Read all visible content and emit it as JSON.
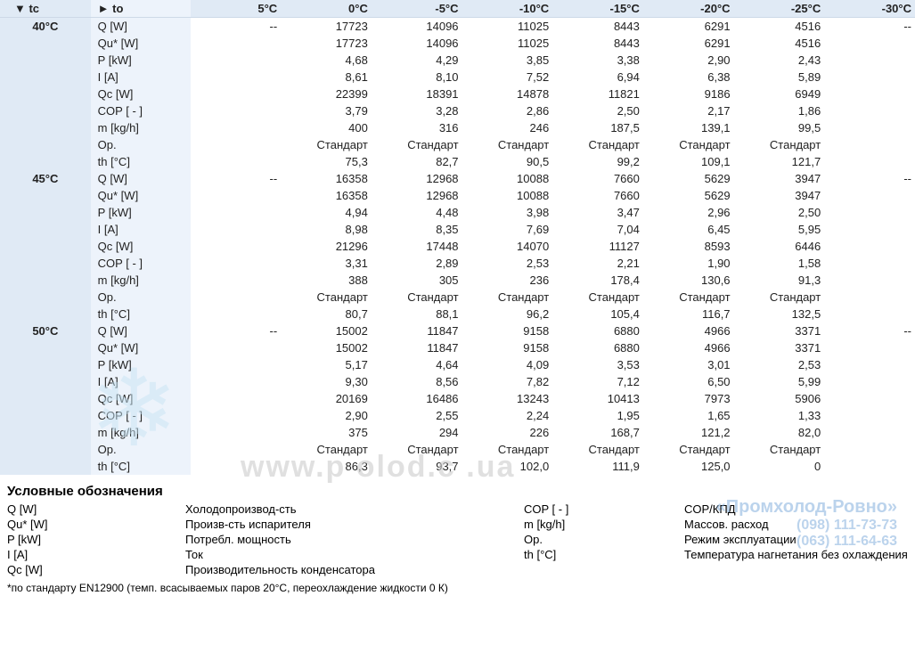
{
  "header": {
    "tc_label": "▼ tc",
    "to_label": "► to",
    "temps": [
      "5°C",
      "0°C",
      "-5°C",
      "-10°C",
      "-15°C",
      "-20°C",
      "-25°C",
      "-30°C"
    ]
  },
  "params": [
    "Q [W]",
    "Qu* [W]",
    "P [kW]",
    "I [A]",
    "Qc [W]",
    "COP [ - ]",
    "m [kg/h]",
    "Op.",
    "th [°C]"
  ],
  "blocks": [
    {
      "tc": "40°C",
      "rows": [
        [
          "--",
          "17723",
          "14096",
          "11025",
          "8443",
          "6291",
          "4516",
          "--"
        ],
        [
          "",
          "17723",
          "14096",
          "11025",
          "8443",
          "6291",
          "4516",
          ""
        ],
        [
          "",
          "4,68",
          "4,29",
          "3,85",
          "3,38",
          "2,90",
          "2,43",
          ""
        ],
        [
          "",
          "8,61",
          "8,10",
          "7,52",
          "6,94",
          "6,38",
          "5,89",
          ""
        ],
        [
          "",
          "22399",
          "18391",
          "14878",
          "11821",
          "9186",
          "6949",
          ""
        ],
        [
          "",
          "3,79",
          "3,28",
          "2,86",
          "2,50",
          "2,17",
          "1,86",
          ""
        ],
        [
          "",
          "400",
          "316",
          "246",
          "187,5",
          "139,1",
          "99,5",
          ""
        ],
        [
          "",
          "Стандарт",
          "Стандарт",
          "Стандарт",
          "Стандарт",
          "Стандарт",
          "Стандарт",
          ""
        ],
        [
          "",
          "75,3",
          "82,7",
          "90,5",
          "99,2",
          "109,1",
          "121,7",
          ""
        ]
      ]
    },
    {
      "tc": "45°C",
      "rows": [
        [
          "--",
          "16358",
          "12968",
          "10088",
          "7660",
          "5629",
          "3947",
          "--"
        ],
        [
          "",
          "16358",
          "12968",
          "10088",
          "7660",
          "5629",
          "3947",
          ""
        ],
        [
          "",
          "4,94",
          "4,48",
          "3,98",
          "3,47",
          "2,96",
          "2,50",
          ""
        ],
        [
          "",
          "8,98",
          "8,35",
          "7,69",
          "7,04",
          "6,45",
          "5,95",
          ""
        ],
        [
          "",
          "21296",
          "17448",
          "14070",
          "11127",
          "8593",
          "6446",
          ""
        ],
        [
          "",
          "3,31",
          "2,89",
          "2,53",
          "2,21",
          "1,90",
          "1,58",
          ""
        ],
        [
          "",
          "388",
          "305",
          "236",
          "178,4",
          "130,6",
          "91,3",
          ""
        ],
        [
          "",
          "Стандарт",
          "Стандарт",
          "Стандарт",
          "Стандарт",
          "Стандарт",
          "Стандарт",
          ""
        ],
        [
          "",
          "80,7",
          "88,1",
          "96,2",
          "105,4",
          "116,7",
          "132,5",
          ""
        ]
      ]
    },
    {
      "tc": "50°C",
      "rows": [
        [
          "--",
          "15002",
          "11847",
          "9158",
          "6880",
          "4966",
          "3371",
          "--"
        ],
        [
          "",
          "15002",
          "11847",
          "9158",
          "6880",
          "4966",
          "3371",
          ""
        ],
        [
          "",
          "5,17",
          "4,64",
          "4,09",
          "3,53",
          "3,01",
          "2,53",
          ""
        ],
        [
          "",
          "9,30",
          "8,56",
          "7,82",
          "7,12",
          "6,50",
          "5,99",
          ""
        ],
        [
          "",
          "20169",
          "16486",
          "13243",
          "10413",
          "7973",
          "5906",
          ""
        ],
        [
          "",
          "2,90",
          "2,55",
          "2,24",
          "1,95",
          "1,65",
          "1,33",
          ""
        ],
        [
          "",
          "375",
          "294",
          "226",
          "168,7",
          "121,2",
          "82,0",
          ""
        ],
        [
          "",
          "Стандарт",
          "Стандарт",
          "Стандарт",
          "Стандарт",
          "Стандарт",
          "Стандарт",
          ""
        ],
        [
          "",
          "86,3",
          "93,7",
          "102,0",
          "111,9",
          "125,0",
          "0",
          ""
        ]
      ]
    }
  ],
  "legend": {
    "title": "Условные обозначения",
    "items": [
      [
        "Q [W]",
        "Холодопроизвод-сть",
        "COP [ - ]",
        "COP/КПД"
      ],
      [
        "Qu* [W]",
        "Произв-сть испарителя",
        "m [kg/h]",
        "Массов. расход"
      ],
      [
        "P [kW]",
        "Потребл. мощность",
        "Op.",
        "Режим эксплуатации"
      ],
      [
        "I [A]",
        "Ток",
        "th [°C]",
        "Температура нагнетания без охлаждения"
      ],
      [
        "Qc [W]",
        "Производительность конденсатора",
        "",
        ""
      ]
    ],
    "footnote": "*по стандарту EN12900 (темп. всасываемых паров 20°C, переохлаждение жидкости 0 К)"
  },
  "watermarks": {
    "url": "www.p   olod.c   .ua",
    "brand": "«Промхолод-Ровно»",
    "phones": [
      "(098) 111-73-73",
      "(063) 111-64-63"
    ]
  }
}
